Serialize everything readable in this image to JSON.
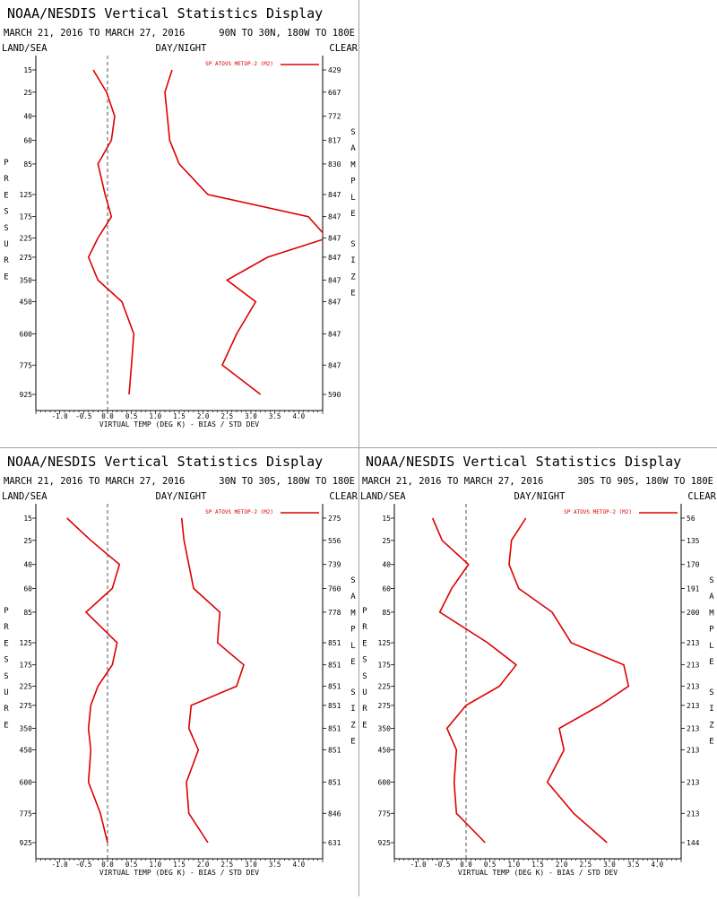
{
  "panels": [
    {
      "title": "NOAA/NESDIS Vertical Statistics Display",
      "date_range": "MARCH 21, 2016 TO MARCH 27, 2016",
      "region": "90N TO 30N, 180W TO 180E",
      "header_left": "LAND/SEA",
      "header_center": "DAY/NIGHT",
      "header_right": "CLEAR",
      "legend": "SP ATOVS METOP-2 (M2)",
      "xlabel": "VIRTUAL TEMP (DEG K) - BIAS / STD DEV",
      "left_vertical": "PRESSURE",
      "right_vertical_top": "SAMPLE",
      "right_vertical_bottom": "SIZE",
      "sample_sizes": [
        "429",
        "667",
        "772",
        "817",
        "830",
        "847",
        "847",
        "847",
        "847",
        "847",
        "847",
        "847",
        "847",
        "590"
      ]
    },
    {
      "title": "NOAA/NESDIS Vertical Statistics Display",
      "date_range": "MARCH 21, 2016 TO MARCH 27, 2016",
      "region": "30N TO 30S, 180W TO 180E",
      "header_left": "LAND/SEA",
      "header_center": "DAY/NIGHT",
      "header_right": "CLEAR",
      "legend": "SP ATOVS METOP-2 (M2)",
      "xlabel": "VIRTUAL TEMP (DEG K) - BIAS / STD DEV",
      "left_vertical": "PRESSURE",
      "right_vertical_top": "SAMPLE",
      "right_vertical_bottom": "SIZE",
      "sample_sizes": [
        "275",
        "556",
        "739",
        "760",
        "778",
        "851",
        "851",
        "851",
        "851",
        "851",
        "851",
        "851",
        "846",
        "631"
      ]
    },
    {
      "title": "NOAA/NESDIS Vertical Statistics Display",
      "date_range": "MARCH 21, 2016 TO MARCH 27, 2016",
      "region": "30S TO 90S, 180W TO 180E",
      "header_left": "LAND/SEA",
      "header_center": "DAY/NIGHT",
      "header_right": "CLEAR",
      "legend": "SP ATOVS METOP-2 (M2)",
      "xlabel": "VIRTUAL TEMP (DEG K) - BIAS / STD DEV",
      "left_vertical": "PRESSURE",
      "right_vertical_top": "SAMPLE",
      "right_vertical_bottom": "SIZE",
      "sample_sizes": [
        "56",
        "135",
        "170",
        "191",
        "200",
        "213",
        "213",
        "213",
        "213",
        "213",
        "213",
        "213",
        "213",
        "144"
      ]
    }
  ],
  "chart_data": [
    {
      "type": "line",
      "pressure_levels": [
        "15",
        "25",
        "40",
        "60",
        "85",
        "125",
        "175",
        "225",
        "275",
        "350",
        "450",
        "600",
        "775",
        "925"
      ],
      "x_ticks": [
        "-1.0",
        "-0.5",
        "0.0",
        "0.5",
        "1.0",
        "1.5",
        "2.0",
        "2.5",
        "3.0",
        "3.5",
        "4.0"
      ],
      "xlim": [
        -1.5,
        4.5
      ],
      "zero_line": 0.0,
      "color": "#dd0000",
      "series": [
        {
          "name": "BIAS",
          "values": [
            -0.3,
            -0.02,
            0.15,
            0.08,
            -0.2,
            -0.05,
            0.08,
            -0.2,
            -0.4,
            -0.2,
            0.3,
            0.55,
            0.5,
            0.45
          ]
        },
        {
          "name": "STD DEV",
          "values": [
            1.35,
            1.2,
            1.25,
            1.3,
            1.5,
            2.1,
            4.2,
            4.6,
            3.35,
            2.5,
            3.1,
            2.7,
            2.4,
            3.2
          ]
        }
      ]
    },
    {
      "type": "line",
      "pressure_levels": [
        "15",
        "25",
        "40",
        "60",
        "85",
        "125",
        "175",
        "225",
        "275",
        "350",
        "450",
        "600",
        "775",
        "925"
      ],
      "x_ticks": [
        "-1.0",
        "-0.5",
        "0.0",
        "0.5",
        "1.0",
        "1.5",
        "2.0",
        "2.5",
        "3.0",
        "3.5",
        "4.0"
      ],
      "xlim": [
        -1.5,
        4.5
      ],
      "zero_line": 0.0,
      "color": "#dd0000",
      "series": [
        {
          "name": "BIAS",
          "values": [
            -0.85,
            -0.35,
            0.25,
            0.1,
            -0.45,
            0.2,
            0.1,
            -0.2,
            -0.35,
            -0.4,
            -0.35,
            -0.4,
            -0.15,
            0.0
          ]
        },
        {
          "name": "STD DEV",
          "values": [
            1.55,
            1.6,
            1.7,
            1.8,
            2.35,
            2.3,
            2.85,
            2.7,
            1.75,
            1.7,
            1.9,
            1.65,
            1.7,
            2.1
          ]
        }
      ]
    },
    {
      "type": "line",
      "pressure_levels": [
        "15",
        "25",
        "40",
        "60",
        "85",
        "125",
        "175",
        "225",
        "275",
        "350",
        "450",
        "600",
        "775",
        "925"
      ],
      "x_ticks": [
        "-1.0",
        "-0.5",
        "0.0",
        "0.5",
        "1.0",
        "1.5",
        "2.0",
        "2.5",
        "3.0",
        "3.5",
        "4.0"
      ],
      "xlim": [
        -1.5,
        4.5
      ],
      "zero_line": 0.0,
      "color": "#dd0000",
      "series": [
        {
          "name": "BIAS",
          "values": [
            -0.7,
            -0.5,
            0.05,
            -0.3,
            -0.55,
            0.45,
            1.05,
            0.7,
            0.0,
            -0.4,
            -0.2,
            -0.25,
            -0.2,
            0.4
          ]
        },
        {
          "name": "STD DEV",
          "values": [
            1.25,
            0.95,
            0.9,
            1.1,
            1.8,
            2.2,
            3.3,
            3.4,
            2.8,
            1.95,
            2.05,
            1.7,
            2.25,
            2.95
          ]
        }
      ]
    }
  ]
}
